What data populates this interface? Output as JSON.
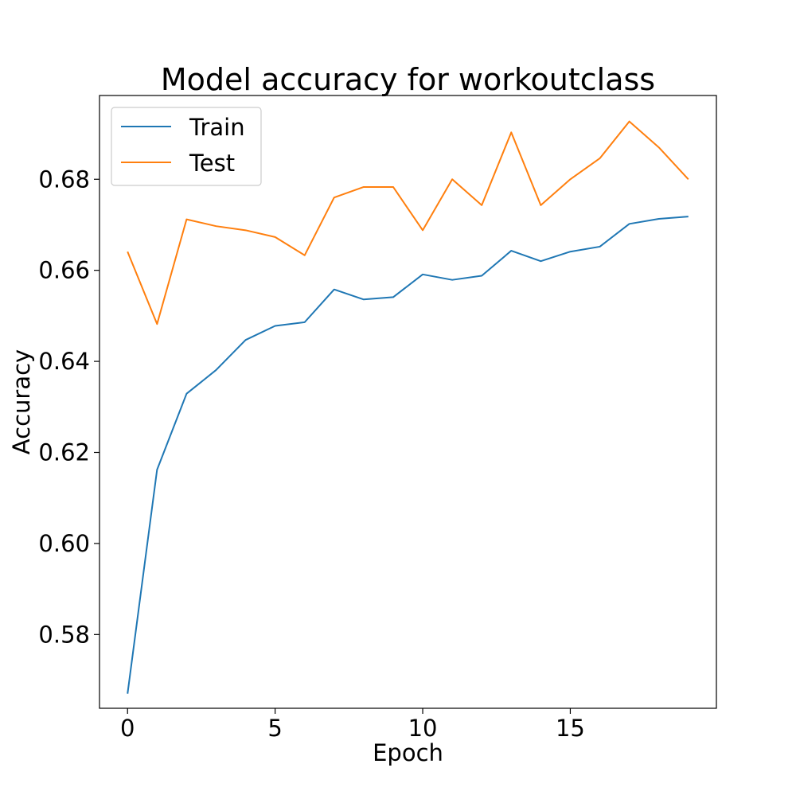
{
  "chart_data": {
    "type": "line",
    "title": "Model accuracy for workoutclass",
    "xlabel": "Epoch",
    "ylabel": "Accuracy",
    "x": [
      0,
      1,
      2,
      3,
      4,
      5,
      6,
      7,
      8,
      9,
      10,
      11,
      12,
      13,
      14,
      15,
      16,
      17,
      18,
      19
    ],
    "xlim": [
      -0.95,
      19.95
    ],
    "ylim": [
      0.5638,
      0.6984
    ],
    "xticks": [
      0,
      5,
      10,
      15
    ],
    "yticks": [
      0.58,
      0.6,
      0.62,
      0.64,
      0.66,
      0.68
    ],
    "xtick_labels": [
      "0",
      "5",
      "10",
      "15"
    ],
    "ytick_labels": [
      "0.58",
      "0.60",
      "0.62",
      "0.64",
      "0.66",
      "0.68"
    ],
    "grid": false,
    "legend_position": "upper-left",
    "series": [
      {
        "name": "Train",
        "color": "#1f77b4",
        "values": [
          0.567,
          0.6162,
          0.6329,
          0.6381,
          0.6447,
          0.6478,
          0.6486,
          0.6558,
          0.6536,
          0.6541,
          0.6591,
          0.6579,
          0.6588,
          0.6643,
          0.662,
          0.6641,
          0.6652,
          0.6702,
          0.6713,
          0.6718
        ]
      },
      {
        "name": "Test",
        "color": "#ff7f0e",
        "values": [
          0.6641,
          0.6482,
          0.6712,
          0.6697,
          0.6688,
          0.6673,
          0.6633,
          0.676,
          0.6783,
          0.6783,
          0.6688,
          0.68,
          0.6743,
          0.6903,
          0.6743,
          0.68,
          0.6846,
          0.6927,
          0.687,
          0.68
        ]
      }
    ]
  }
}
